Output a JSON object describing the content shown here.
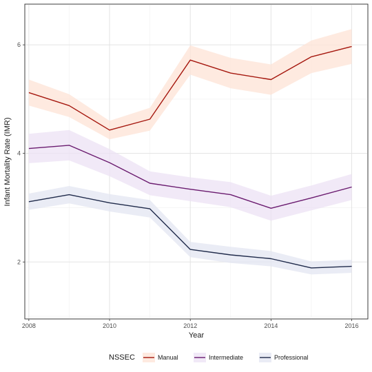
{
  "chart_data": {
    "type": "line",
    "x": [
      2008,
      2009,
      2010,
      2011,
      2012,
      2013,
      2014,
      2015,
      2016
    ],
    "xticks": [
      "2008",
      "2010",
      "2012",
      "2014",
      "2016"
    ],
    "yticks": [
      "2",
      "4",
      "6"
    ],
    "xlabel": "Year",
    "ylabel": "Infant Mortality Rate (IMR)",
    "xlim": [
      2007.9,
      2016.4
    ],
    "ylim": [
      0.95,
      6.75
    ],
    "grid": true,
    "legend_title": "NSSEC",
    "legend_position": "bottom",
    "series": [
      {
        "name": "Manual",
        "color": "#a5170e",
        "band_color": "#fde3d6",
        "values": [
          5.12,
          4.88,
          4.43,
          4.63,
          5.72,
          5.48,
          5.36,
          5.78,
          5.97
        ],
        "lower": [
          4.88,
          4.67,
          4.26,
          4.42,
          5.45,
          5.2,
          5.08,
          5.48,
          5.65
        ],
        "upper": [
          5.36,
          5.09,
          4.6,
          4.84,
          5.99,
          5.76,
          5.64,
          6.08,
          6.29
        ]
      },
      {
        "name": "Intermediate",
        "color": "#6a1b6f",
        "band_color": "#ece2f4",
        "values": [
          4.09,
          4.15,
          3.83,
          3.45,
          3.34,
          3.24,
          2.99,
          3.18,
          3.38
        ],
        "lower": [
          3.82,
          3.87,
          3.58,
          3.23,
          3.12,
          3.01,
          2.76,
          2.95,
          3.14
        ],
        "upper": [
          4.36,
          4.43,
          4.08,
          3.67,
          3.56,
          3.47,
          3.22,
          3.41,
          3.62
        ]
      },
      {
        "name": "Professional",
        "color": "#1f2a4a",
        "band_color": "#e3e5f2",
        "values": [
          3.11,
          3.24,
          3.09,
          2.98,
          2.23,
          2.13,
          2.06,
          1.89,
          1.92
        ],
        "lower": [
          2.96,
          3.08,
          2.93,
          2.82,
          2.09,
          1.98,
          1.92,
          1.77,
          1.8
        ],
        "upper": [
          3.26,
          3.4,
          3.25,
          3.14,
          2.37,
          2.28,
          2.2,
          2.01,
          2.04
        ]
      }
    ]
  }
}
